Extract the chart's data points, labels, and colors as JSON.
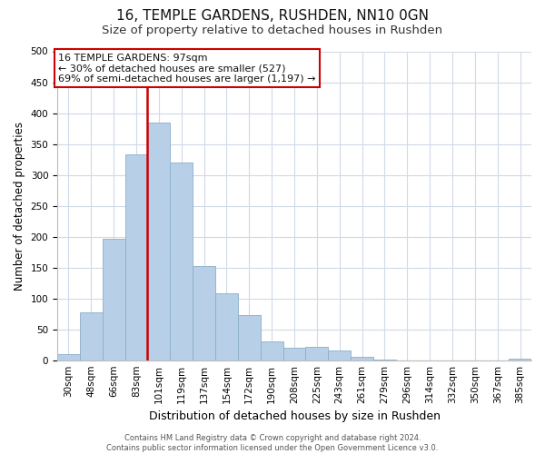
{
  "title": "16, TEMPLE GARDENS, RUSHDEN, NN10 0GN",
  "subtitle": "Size of property relative to detached houses in Rushden",
  "xlabel": "Distribution of detached houses by size in Rushden",
  "ylabel": "Number of detached properties",
  "bar_labels": [
    "30sqm",
    "48sqm",
    "66sqm",
    "83sqm",
    "101sqm",
    "119sqm",
    "137sqm",
    "154sqm",
    "172sqm",
    "190sqm",
    "208sqm",
    "225sqm",
    "243sqm",
    "261sqm",
    "279sqm",
    "296sqm",
    "314sqm",
    "332sqm",
    "350sqm",
    "367sqm",
    "385sqm"
  ],
  "bar_values": [
    10,
    78,
    197,
    333,
    385,
    320,
    152,
    108,
    73,
    30,
    20,
    22,
    15,
    5,
    1,
    0,
    0,
    0,
    0,
    0,
    2
  ],
  "bar_color": "#b8cfe8",
  "bar_edge_color": "#8aafc8",
  "vline_color": "#cc0000",
  "vline_x": 3.5,
  "annotation_line1": "16 TEMPLE GARDENS: 97sqm",
  "annotation_line2": "← 30% of detached houses are smaller (527)",
  "annotation_line3": "69% of semi-detached houses are larger (1,197) →",
  "annotation_box_color": "#ffffff",
  "annotation_box_edge": "#cc0000",
  "ylim": [
    0,
    500
  ],
  "yticks": [
    0,
    50,
    100,
    150,
    200,
    250,
    300,
    350,
    400,
    450,
    500
  ],
  "footer_line1": "Contains HM Land Registry data © Crown copyright and database right 2024.",
  "footer_line2": "Contains public sector information licensed under the Open Government Licence v3.0.",
  "bg_color": "#ffffff",
  "grid_color": "#d0dae8",
  "title_fontsize": 11,
  "subtitle_fontsize": 9.5,
  "ylabel_fontsize": 8.5,
  "xlabel_fontsize": 9,
  "tick_fontsize": 7.5,
  "annot_fontsize": 8,
  "footer_fontsize": 6
}
